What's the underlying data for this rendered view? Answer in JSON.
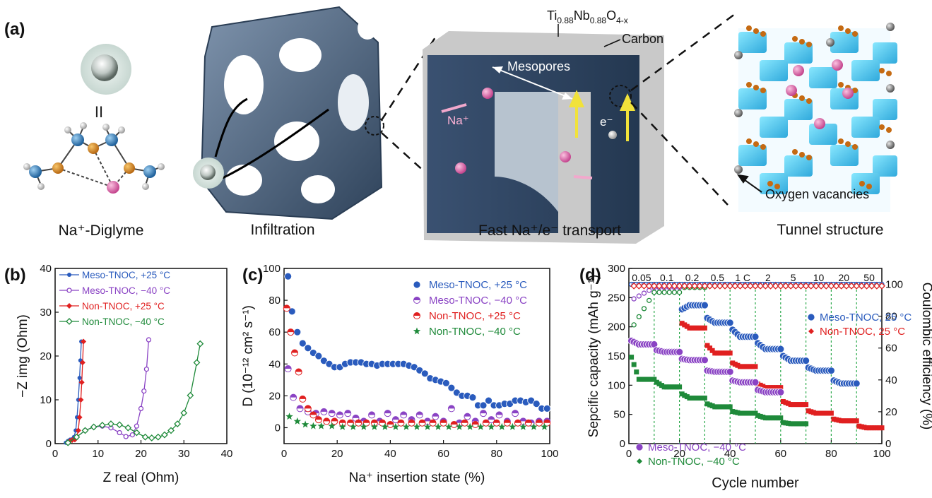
{
  "panel_a": {
    "label": "(a)",
    "equals_sign": "II",
    "captions": [
      "Na⁺-Diglyme",
      "Infiltration",
      "Fast Na⁺/e⁻ transport",
      "Tunnel structure"
    ],
    "formula": "Ti0.88Nb0.88O4-x",
    "carbon_label": "Carbon",
    "mesopores_label": "Mesopores",
    "na_label": "Na⁺",
    "e_label": "e⁻",
    "vacancy_label": "Oxygen vacancies"
  },
  "chart_data": [
    {
      "type": "scatter",
      "label": "(b)",
      "xlabel": "Z real (Ohm)",
      "ylabel": "−Z img (Ohm)",
      "xlim": [
        0,
        40
      ],
      "ylim": [
        0,
        40
      ],
      "xticks": [
        0,
        10,
        20,
        30,
        40
      ],
      "yticks": [
        0,
        10,
        20,
        30,
        40
      ],
      "legend": "top-left",
      "series": [
        {
          "name": "Meso-TNOC, +25 °C",
          "color": "#2a5bbd",
          "marker": "filled-circle",
          "x": [
            2.5,
            3,
            3.5,
            4,
            4.4,
            4.8,
            5.1,
            5.4,
            5.7,
            5.9,
            6.1
          ],
          "y": [
            0.2,
            0.6,
            0.9,
            1,
            1.5,
            3,
            6,
            10,
            15,
            19,
            23.3
          ]
        },
        {
          "name": "Meso-TNOC, −40 °C",
          "color": "#8a43c4",
          "marker": "open-circle",
          "x": [
            3,
            5,
            7,
            9,
            11,
            13,
            15,
            16.5,
            18,
            19,
            20,
            20.7,
            21.3,
            21.8
          ],
          "y": [
            0.2,
            1.5,
            3,
            3.8,
            4,
            3.6,
            2.5,
            1.6,
            2,
            4,
            8,
            12,
            17,
            23.7
          ]
        },
        {
          "name": "Non-TNOC,   +25 °C",
          "color": "#e02020",
          "marker": "filled-diamond",
          "x": [
            3,
            3.5,
            4,
            4.6,
            5,
            5.4,
            5.7,
            6,
            6.2,
            6.4,
            6.6
          ],
          "y": [
            0.2,
            0.6,
            0.8,
            0.9,
            1.5,
            3,
            6,
            10,
            14,
            18.5,
            23.3
          ]
        },
        {
          "name": "Non-TNOC,   −40 °C",
          "color": "#1f8a3a",
          "marker": "open-diamond",
          "x": [
            3,
            5,
            7,
            9,
            11,
            13,
            15,
            17,
            19,
            21,
            22.5,
            24,
            25.5,
            27,
            28.5,
            30,
            31.5,
            33,
            33.8
          ],
          "y": [
            0.2,
            1.5,
            3,
            3.8,
            4.2,
            4.5,
            4.3,
            3.6,
            2.5,
            1.5,
            1.3,
            1.5,
            2,
            3,
            4.5,
            7,
            11,
            18.5,
            22.8
          ]
        }
      ]
    },
    {
      "type": "scatter",
      "label": "(c)",
      "xlabel": "Na⁺ insertion state (%)",
      "ylabel": "D (10⁻¹² cm² s⁻¹)",
      "xlim": [
        0,
        100
      ],
      "ylim": [
        -10,
        100
      ],
      "xticks": [
        0,
        20,
        40,
        60,
        80,
        100
      ],
      "yticks": [
        0,
        20,
        40,
        60,
        80,
        100
      ],
      "legend": "top-right",
      "series": [
        {
          "name": "Meso-TNOC, +25 °C",
          "color": "#2a5bbd",
          "marker": "sphere",
          "x": [
            1.5,
            3,
            5,
            7,
            9,
            11,
            13,
            15,
            17,
            19,
            21,
            23,
            25,
            27,
            29,
            31,
            33,
            35,
            37,
            39,
            41,
            43,
            45,
            47,
            49,
            51,
            53,
            55,
            57,
            59,
            61,
            63,
            65,
            67,
            69,
            71,
            73,
            75,
            77,
            79,
            81,
            83,
            85,
            87,
            89,
            91,
            93,
            95,
            97,
            99
          ],
          "y": [
            95,
            73,
            60,
            53,
            50,
            47,
            45,
            42,
            40,
            38,
            38,
            40,
            41,
            41,
            41,
            40,
            40,
            39,
            40,
            40,
            40,
            40,
            40,
            39,
            38,
            36,
            34,
            31,
            30,
            29,
            28,
            25,
            22,
            20,
            20,
            19,
            14,
            14,
            17,
            14,
            14,
            15,
            15,
            17,
            17,
            16,
            17,
            15,
            12,
            12
          ]
        },
        {
          "name": "Meso-TNOC, −40 °C",
          "color": "#8a43c4",
          "marker": "half-circle",
          "x": [
            1.5,
            3.5,
            6,
            9,
            12,
            15,
            18,
            21,
            24,
            27,
            30,
            33,
            36,
            39,
            42,
            45,
            48,
            51,
            54,
            57,
            60,
            63,
            66,
            69,
            72,
            75,
            78,
            81,
            84,
            87,
            90,
            93,
            96,
            99
          ],
          "y": [
            37,
            19,
            12,
            10,
            9,
            10,
            9,
            8,
            9,
            6,
            4,
            8,
            4,
            9,
            5,
            8,
            5,
            8,
            4,
            7,
            4,
            12,
            3,
            7,
            4,
            9,
            5,
            8,
            4,
            9,
            4,
            3,
            4,
            4
          ]
        },
        {
          "name": "Non-TNOC,   +25 °C",
          "color": "#e02020",
          "marker": "half-circle",
          "x": [
            1,
            2.5,
            4,
            5.5,
            7,
            9,
            11,
            13,
            16,
            19,
            22,
            25,
            28,
            31,
            34,
            37,
            40,
            44,
            48,
            52,
            56,
            60,
            64,
            68,
            72,
            76,
            80,
            84,
            88,
            92,
            96,
            99
          ],
          "y": [
            75,
            60,
            47,
            35,
            18,
            12,
            8,
            5,
            4,
            4,
            3,
            3,
            3,
            3,
            3,
            3,
            2,
            3,
            3,
            3,
            3,
            3,
            2,
            3,
            2,
            3,
            3,
            3,
            3,
            3,
            3,
            3
          ]
        },
        {
          "name": "Non-TNOC,   −40 °C",
          "color": "#1f8a3a",
          "marker": "star",
          "x": [
            2,
            5,
            8,
            11,
            14,
            18,
            22,
            26,
            30,
            34,
            38,
            42,
            46,
            50,
            54,
            58,
            62,
            66,
            70,
            74,
            78,
            82,
            86,
            90,
            94,
            98
          ],
          "y": [
            7,
            4,
            2,
            1,
            1,
            1,
            0.5,
            0.5,
            0.5,
            0.5,
            0.5,
            0.5,
            0.5,
            0.5,
            0.5,
            0.5,
            0.5,
            0.5,
            0.5,
            0.5,
            0.5,
            0.5,
            0.5,
            0.5,
            0.5,
            0.5
          ]
        }
      ]
    },
    {
      "type": "scatter",
      "label": "(d)",
      "xlabel": "Cycle number",
      "ylabel": "Sepcific capacity (mAh g⁻¹)",
      "ylabel_right": "Coulombic efficiency (%)",
      "xlim": [
        0,
        100
      ],
      "ylim": [
        0,
        300
      ],
      "ylim_right": [
        0,
        110
      ],
      "xticks": [
        0,
        20,
        40,
        60,
        80,
        100
      ],
      "yticks": [
        0,
        50,
        100,
        150,
        200,
        250,
        300
      ],
      "yticks_right": [
        0,
        20,
        40,
        60,
        80,
        100
      ],
      "rate_labels": [
        "0.05",
        "0.1",
        "0.2",
        "0.5",
        "1 C",
        "2",
        "5",
        "10",
        "20",
        "50"
      ],
      "rate_boundaries": [
        10,
        20,
        30,
        40,
        50,
        60,
        70,
        80,
        90
      ],
      "legend": "center-right",
      "capacity_levels": [
        {
          "name": "Meso-TNOC, 25 °C",
          "color": "#2a5bbd",
          "levels": [
            null,
            null,
            237,
            207,
            183,
            162,
            142,
            125,
            103,
            null
          ],
          "start_values": [
            null,
            null,
            230,
            215,
            195,
            172,
            150,
            130,
            108,
            null
          ]
        },
        {
          "name": "Non-TNOC,   25 °C",
          "color": "#e02020",
          "levels": [
            null,
            null,
            198,
            155,
            132,
            96,
            67,
            52,
            39,
            27
          ],
          "start_values": [
            null,
            null,
            206,
            168,
            138,
            102,
            72,
            56,
            42,
            30
          ]
        },
        {
          "name": "Meso-TNOC, −40 °C",
          "color": "#8a43c4",
          "levels": [
            170,
            157,
            143,
            123,
            105,
            88,
            null,
            null,
            null,
            null
          ],
          "start_values": [
            176,
            160,
            145,
            125,
            108,
            92,
            null,
            null,
            null,
            null
          ]
        },
        {
          "name": "Non-TNOC,   −40 °C",
          "color": "#1f8a3a",
          "levels": [
            110,
            97,
            78,
            63,
            52,
            44,
            34,
            null,
            null,
            null
          ],
          "start_values": [
            148,
            105,
            85,
            68,
            55,
            48,
            36,
            null,
            null,
            null
          ]
        }
      ],
      "coulombic_efficiency": [
        {
          "color": "#2a5bbd",
          "values_pct": [
            100,
            100,
            100,
            100,
            100,
            100,
            100,
            100,
            100,
            100
          ]
        },
        {
          "color": "#8a43c4",
          "values_pct": [
            90,
            98,
            99,
            99,
            99,
            99,
            99,
            99,
            99,
            99
          ]
        },
        {
          "color": "#1f8a3a",
          "values_pct": [
            72,
            95,
            98,
            99,
            99,
            99,
            99,
            99,
            99,
            99
          ]
        },
        {
          "color": "#e02020",
          "values_pct": [
            99,
            99,
            99,
            99,
            99,
            99,
            99,
            99,
            99,
            99
          ]
        }
      ]
    }
  ]
}
